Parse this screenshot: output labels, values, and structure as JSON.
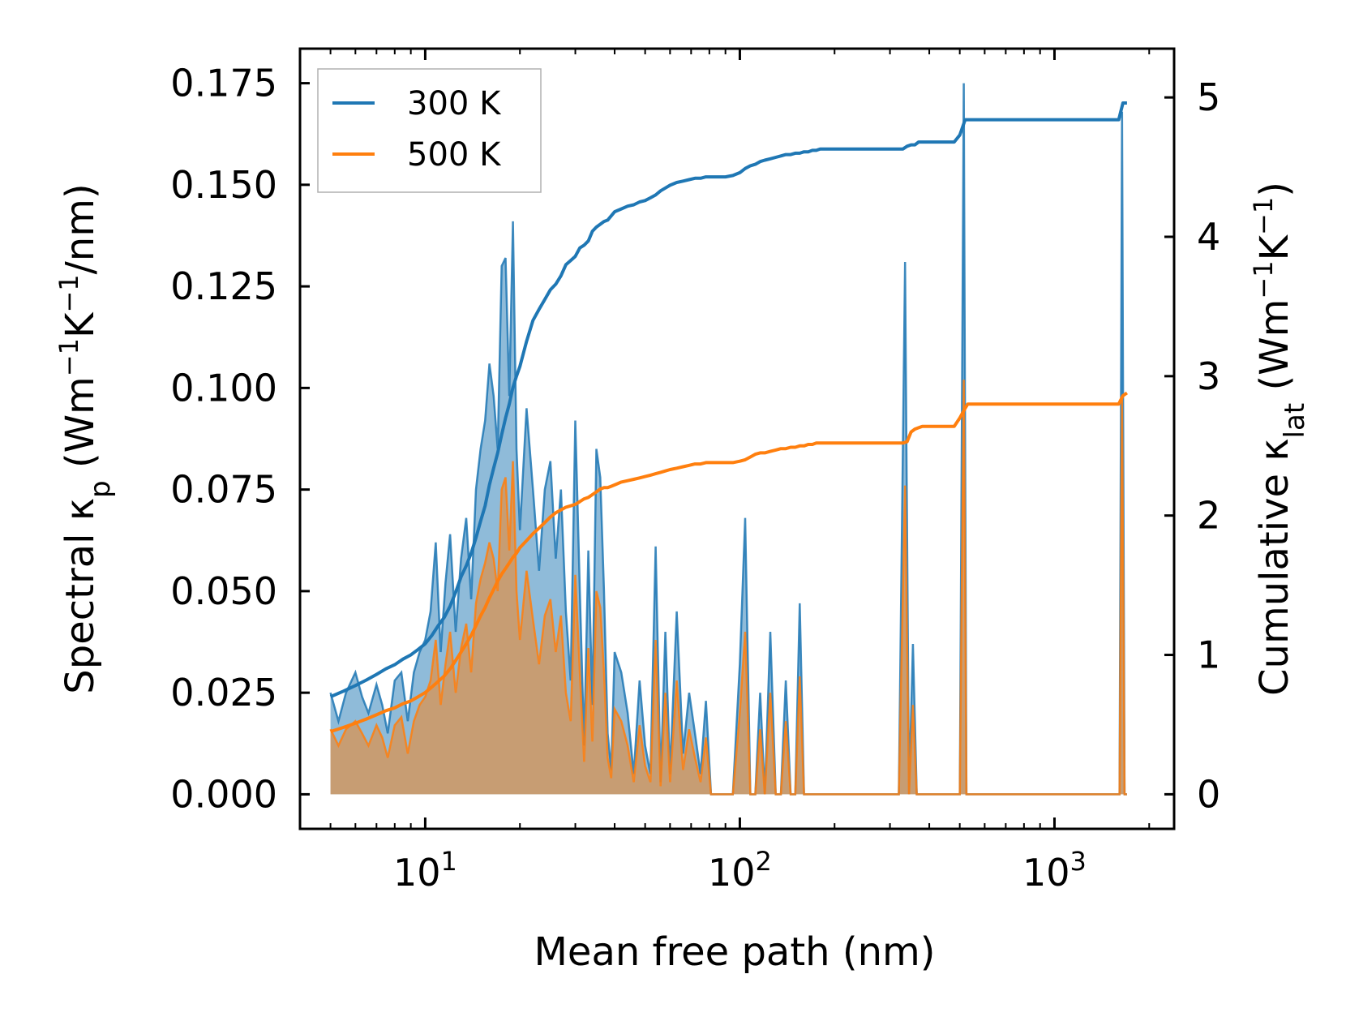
{
  "chart_data": {
    "type": "line",
    "xlabel": "Mean free path (nm)",
    "ylabel_left": {
      "main": "Spectral κ",
      "sub": "p",
      "unit_open": " (Wm",
      "exp1": "−1",
      "mid": "K",
      "exp2": "−1",
      "unit_close": "/nm)"
    },
    "ylabel_right": {
      "main": "Cumulative κ",
      "sub": "lat",
      "unit_open": " (Wm",
      "exp1": "−1",
      "mid": "K",
      "exp2": "−1",
      "unit_close": ")"
    },
    "x_scale": "log",
    "xlim": [
      4.0,
      2400
    ],
    "ylim_left": [
      -0.0085,
      0.1835
    ],
    "ylim_right": [
      -0.248,
      5.35
    ],
    "x_ticks": [
      {
        "base": "10",
        "exp": "1",
        "value": 10
      },
      {
        "base": "10",
        "exp": "2",
        "value": 100
      },
      {
        "base": "10",
        "exp": "3",
        "value": 1000
      }
    ],
    "y_ticks_left": [
      "0.000",
      "0.025",
      "0.050",
      "0.075",
      "0.100",
      "0.125",
      "0.150",
      "0.175"
    ],
    "y_ticks_right": [
      "0",
      "1",
      "2",
      "3",
      "4",
      "5"
    ],
    "legend": {
      "position": "top-left",
      "entries": [
        {
          "label": "300 K",
          "color": "#1f77b4"
        },
        {
          "label": "500 K",
          "color": "#ff7f0e"
        }
      ]
    },
    "series": [
      {
        "name": "300 K spectral",
        "axis": "left",
        "kind": "filled",
        "color": "#1f77b4",
        "x": [
          5,
          5.3,
          5.6,
          6.0,
          6.3,
          6.6,
          7.0,
          7.3,
          7.6,
          8.0,
          8.4,
          8.8,
          9.2,
          9.6,
          10.0,
          10.4,
          10.8,
          11.2,
          11.6,
          12.0,
          12.5,
          13.0,
          13.5,
          14.0,
          14.5,
          15.0,
          15.5,
          16.0,
          16.5,
          17.0,
          17.5,
          18.0,
          18.5,
          19.0,
          19.5,
          20.0,
          21.0,
          22.0,
          23.0,
          24.0,
          25.0,
          26.0,
          27.0,
          28.0,
          29.0,
          30.0,
          31.0,
          32.0,
          33.0,
          34.0,
          35.0,
          36.0,
          37.0,
          38.0,
          39.0,
          40.0,
          42.0,
          44.0,
          46.0,
          48.0,
          50.0,
          52.0,
          54.0,
          56.0,
          58.0,
          60.0,
          63.0,
          66.0,
          69.0,
          72.0,
          75.0,
          78.0,
          81.0,
          85.0,
          90.0,
          95.0,
          100.0,
          104.0,
          108.0,
          112.0,
          116.0,
          120.0,
          125.0,
          130.0,
          135.0,
          140.0,
          145.0,
          150.0,
          155.0,
          160.0,
          165.0,
          170.0,
          175.0,
          180.0,
          190.0,
          200.0,
          300.0,
          320.0,
          335.0,
          345.0,
          355.0,
          365.0,
          375.0,
          385.0,
          395.0,
          480.0,
          500.0,
          515.0,
          525.0,
          535.0,
          545.0,
          1550.0,
          1610.0,
          1640.0,
          1670.0,
          1700.0
        ],
        "values": [
          0.025,
          0.018,
          0.025,
          0.03,
          0.024,
          0.02,
          0.027,
          0.022,
          0.015,
          0.028,
          0.03,
          0.018,
          0.03,
          0.035,
          0.038,
          0.045,
          0.062,
          0.035,
          0.052,
          0.064,
          0.04,
          0.058,
          0.068,
          0.048,
          0.075,
          0.085,
          0.092,
          0.106,
          0.098,
          0.085,
          0.13,
          0.132,
          0.098,
          0.141,
          0.085,
          0.065,
          0.095,
          0.075,
          0.055,
          0.075,
          0.082,
          0.058,
          0.075,
          0.045,
          0.028,
          0.092,
          0.05,
          0.012,
          0.06,
          0.022,
          0.085,
          0.078,
          0.05,
          0.015,
          0.006,
          0.035,
          0.03,
          0.02,
          0.005,
          0.028,
          0.012,
          0.005,
          0.061,
          0.003,
          0.04,
          0.005,
          0.045,
          0.01,
          0.025,
          0.015,
          0.005,
          0.023,
          0.0,
          0.0,
          0.0,
          0.0,
          0.032,
          0.068,
          0.0,
          0.0,
          0.025,
          0.0,
          0.04,
          0.0,
          0.0,
          0.028,
          0.0,
          0.0,
          0.047,
          0.0,
          0.0,
          0.0,
          0.0,
          0.0,
          0.0,
          0.0,
          0.0,
          0.0,
          0.131,
          0.0,
          0.037,
          0.0,
          0.0,
          0.0,
          0.0,
          0.0,
          0.0,
          0.175,
          0.0,
          0.0,
          0.0,
          0.0,
          0.0,
          0.168,
          0.0,
          0.0
        ]
      },
      {
        "name": "500 K spectral",
        "axis": "left",
        "kind": "filled",
        "color": "#ff7f0e",
        "x": [
          5,
          5.3,
          5.6,
          6.0,
          6.3,
          6.6,
          7.0,
          7.3,
          7.6,
          8.0,
          8.4,
          8.8,
          9.2,
          9.6,
          10.0,
          10.4,
          10.8,
          11.2,
          11.6,
          12.0,
          12.5,
          13.0,
          13.5,
          14.0,
          14.5,
          15.0,
          15.5,
          16.0,
          16.5,
          17.0,
          17.5,
          18.0,
          18.5,
          19.0,
          19.5,
          20.0,
          21.0,
          22.0,
          23.0,
          24.0,
          25.0,
          26.0,
          27.0,
          28.0,
          29.0,
          30.0,
          31.0,
          32.0,
          33.0,
          34.0,
          35.0,
          36.0,
          37.0,
          38.0,
          39.0,
          40.0,
          42.0,
          44.0,
          46.0,
          48.0,
          50.0,
          52.0,
          54.0,
          56.0,
          58.0,
          60.0,
          63.0,
          66.0,
          69.0,
          72.0,
          75.0,
          78.0,
          81.0,
          85.0,
          90.0,
          95.0,
          100.0,
          104.0,
          108.0,
          112.0,
          116.0,
          120.0,
          125.0,
          130.0,
          135.0,
          140.0,
          145.0,
          150.0,
          155.0,
          160.0,
          165.0,
          170.0,
          175.0,
          180.0,
          190.0,
          200.0,
          300.0,
          320.0,
          335.0,
          345.0,
          355.0,
          365.0,
          375.0,
          385.0,
          395.0,
          480.0,
          500.0,
          515.0,
          525.0,
          535.0,
          545.0,
          1550.0,
          1610.0,
          1640.0,
          1670.0,
          1700.0
        ],
        "values": [
          0.016,
          0.012,
          0.016,
          0.018,
          0.015,
          0.012,
          0.017,
          0.014,
          0.009,
          0.017,
          0.019,
          0.01,
          0.018,
          0.022,
          0.024,
          0.028,
          0.038,
          0.022,
          0.032,
          0.04,
          0.025,
          0.036,
          0.042,
          0.03,
          0.047,
          0.053,
          0.057,
          0.062,
          0.058,
          0.05,
          0.075,
          0.078,
          0.06,
          0.082,
          0.05,
          0.038,
          0.055,
          0.043,
          0.032,
          0.044,
          0.048,
          0.035,
          0.044,
          0.025,
          0.018,
          0.054,
          0.03,
          0.008,
          0.036,
          0.013,
          0.05,
          0.046,
          0.03,
          0.009,
          0.004,
          0.021,
          0.018,
          0.012,
          0.003,
          0.017,
          0.007,
          0.003,
          0.038,
          0.002,
          0.025,
          0.003,
          0.028,
          0.006,
          0.016,
          0.009,
          0.003,
          0.014,
          0.0,
          0.0,
          0.0,
          0.0,
          0.02,
          0.04,
          0.0,
          0.0,
          0.016,
          0.0,
          0.025,
          0.0,
          0.0,
          0.018,
          0.0,
          0.0,
          0.029,
          0.0,
          0.0,
          0.0,
          0.0,
          0.0,
          0.0,
          0.0,
          0.0,
          0.0,
          0.076,
          0.0,
          0.022,
          0.0,
          0.0,
          0.0,
          0.0,
          0.0,
          0.0,
          0.102,
          0.0,
          0.0,
          0.0,
          0.0,
          0.0,
          0.098,
          0.0,
          0.0
        ]
      },
      {
        "name": "300 K",
        "axis": "right",
        "kind": "line",
        "color": "#1f77b4",
        "x": [
          5,
          5.5,
          6,
          6.5,
          7,
          7.5,
          8,
          8.5,
          9,
          9.5,
          10,
          10.5,
          11,
          11.5,
          12,
          12.5,
          13,
          13.5,
          14,
          14.5,
          15,
          15.5,
          16,
          16.5,
          17,
          17.5,
          18,
          18.5,
          19,
          19.5,
          20,
          21,
          22,
          23,
          24,
          25,
          26,
          27,
          28,
          29,
          30,
          31,
          32,
          33,
          34,
          35,
          36,
          37,
          38,
          39,
          40,
          42,
          44,
          46,
          48,
          50,
          52,
          54,
          56,
          58,
          60,
          63,
          66,
          69,
          72,
          75,
          78,
          81,
          85,
          90,
          95,
          100,
          104,
          108,
          112,
          116,
          120,
          125,
          130,
          135,
          140,
          145,
          150,
          155,
          160,
          165,
          170,
          175,
          180,
          190,
          200,
          330,
          340,
          350,
          360,
          370,
          380,
          480,
          500,
          520,
          530,
          1600,
          1650,
          1700
        ],
        "values": [
          0.7,
          0.74,
          0.78,
          0.82,
          0.86,
          0.9,
          0.93,
          0.97,
          1.0,
          1.04,
          1.08,
          1.14,
          1.21,
          1.27,
          1.35,
          1.45,
          1.56,
          1.64,
          1.73,
          1.84,
          1.96,
          2.07,
          2.22,
          2.34,
          2.45,
          2.58,
          2.7,
          2.8,
          2.92,
          3.0,
          3.07,
          3.25,
          3.4,
          3.48,
          3.55,
          3.62,
          3.66,
          3.72,
          3.8,
          3.83,
          3.86,
          3.92,
          3.94,
          3.97,
          4.04,
          4.07,
          4.09,
          4.11,
          4.12,
          4.15,
          4.18,
          4.2,
          4.22,
          4.23,
          4.25,
          4.26,
          4.28,
          4.3,
          4.33,
          4.35,
          4.37,
          4.39,
          4.4,
          4.41,
          4.42,
          4.42,
          4.43,
          4.43,
          4.43,
          4.43,
          4.44,
          4.46,
          4.49,
          4.51,
          4.52,
          4.54,
          4.55,
          4.56,
          4.57,
          4.58,
          4.59,
          4.59,
          4.6,
          4.6,
          4.61,
          4.61,
          4.62,
          4.62,
          4.63,
          4.63,
          4.63,
          4.63,
          4.65,
          4.66,
          4.66,
          4.68,
          4.68,
          4.68,
          4.73,
          4.84,
          4.84,
          4.84,
          4.96,
          4.96
        ]
      },
      {
        "name": "500 K",
        "axis": "right",
        "kind": "line",
        "color": "#ff7f0e",
        "x": [
          5,
          5.5,
          6,
          6.5,
          7,
          7.5,
          8,
          8.5,
          9,
          9.5,
          10,
          10.5,
          11,
          11.5,
          12,
          12.5,
          13,
          13.5,
          14,
          14.5,
          15,
          15.5,
          16,
          16.5,
          17,
          17.5,
          18,
          18.5,
          19,
          19.5,
          20,
          21,
          22,
          23,
          24,
          25,
          26,
          27,
          28,
          29,
          30,
          31,
          32,
          33,
          34,
          35,
          36,
          37,
          38,
          39,
          40,
          42,
          44,
          46,
          48,
          50,
          52,
          54,
          56,
          58,
          60,
          63,
          66,
          69,
          72,
          75,
          78,
          81,
          85,
          90,
          95,
          100,
          104,
          108,
          112,
          116,
          120,
          125,
          130,
          135,
          140,
          145,
          150,
          155,
          160,
          165,
          170,
          175,
          180,
          190,
          200,
          330,
          340,
          350,
          360,
          370,
          380,
          480,
          500,
          520,
          530,
          1600,
          1650,
          1700
        ],
        "values": [
          0.45,
          0.48,
          0.51,
          0.54,
          0.57,
          0.6,
          0.62,
          0.65,
          0.67,
          0.7,
          0.73,
          0.77,
          0.81,
          0.85,
          0.9,
          0.96,
          1.02,
          1.08,
          1.14,
          1.21,
          1.28,
          1.34,
          1.41,
          1.47,
          1.53,
          1.58,
          1.62,
          1.66,
          1.7,
          1.73,
          1.77,
          1.82,
          1.87,
          1.91,
          1.95,
          1.99,
          2.02,
          2.04,
          2.06,
          2.07,
          2.08,
          2.1,
          2.12,
          2.13,
          2.15,
          2.17,
          2.19,
          2.2,
          2.2,
          2.21,
          2.22,
          2.24,
          2.25,
          2.26,
          2.27,
          2.28,
          2.29,
          2.3,
          2.31,
          2.32,
          2.33,
          2.34,
          2.35,
          2.36,
          2.37,
          2.37,
          2.38,
          2.38,
          2.38,
          2.38,
          2.38,
          2.39,
          2.4,
          2.42,
          2.44,
          2.45,
          2.45,
          2.46,
          2.47,
          2.48,
          2.48,
          2.49,
          2.49,
          2.5,
          2.5,
          2.51,
          2.51,
          2.52,
          2.52,
          2.52,
          2.52,
          2.52,
          2.53,
          2.6,
          2.62,
          2.63,
          2.64,
          2.64,
          2.7,
          2.77,
          2.8,
          2.8,
          2.86,
          2.88
        ]
      }
    ]
  }
}
